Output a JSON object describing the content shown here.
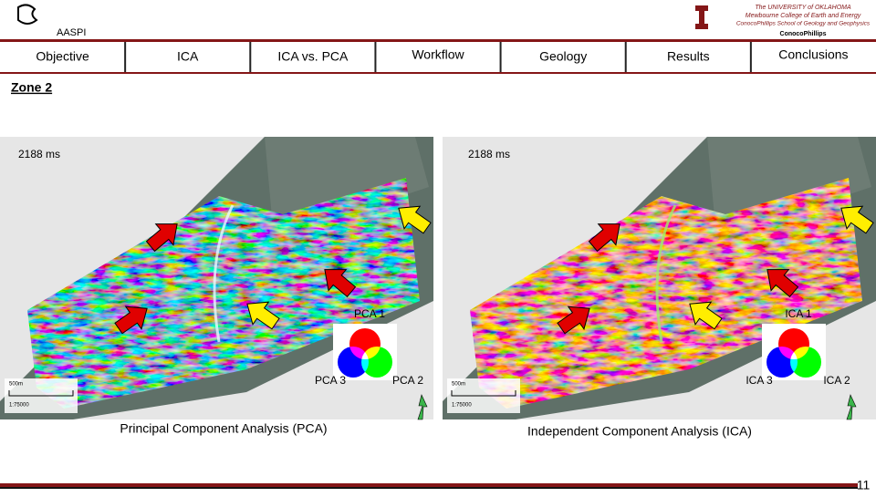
{
  "header": {
    "logo": "AASPI",
    "university": [
      "The UNIVERSITY of OKLAHOMA",
      "Mewbourne College of Earth and Energy",
      "ConocoPhillips School of Geology and Geophysics",
      "ConocoPhillips"
    ]
  },
  "nav": [
    "Objective",
    "ICA",
    "ICA vs. PCA",
    "Workflow",
    "Geology",
    "Results",
    "Conclusions"
  ],
  "title": "Zone 2",
  "panels": [
    {
      "time": "2188 ms",
      "components": [
        "PCA 1",
        "PCA 3",
        "PCA 2"
      ],
      "caption": "Principal Component Analysis (PCA)",
      "scale": [
        "500m",
        "1:75000"
      ]
    },
    {
      "time": "2188 ms",
      "components": [
        "ICA 1",
        "ICA 3",
        "ICA 2"
      ],
      "caption": "Independent Component Analysis (ICA)",
      "scale": [
        "500m",
        "1:75000"
      ]
    }
  ],
  "page_number": "11"
}
